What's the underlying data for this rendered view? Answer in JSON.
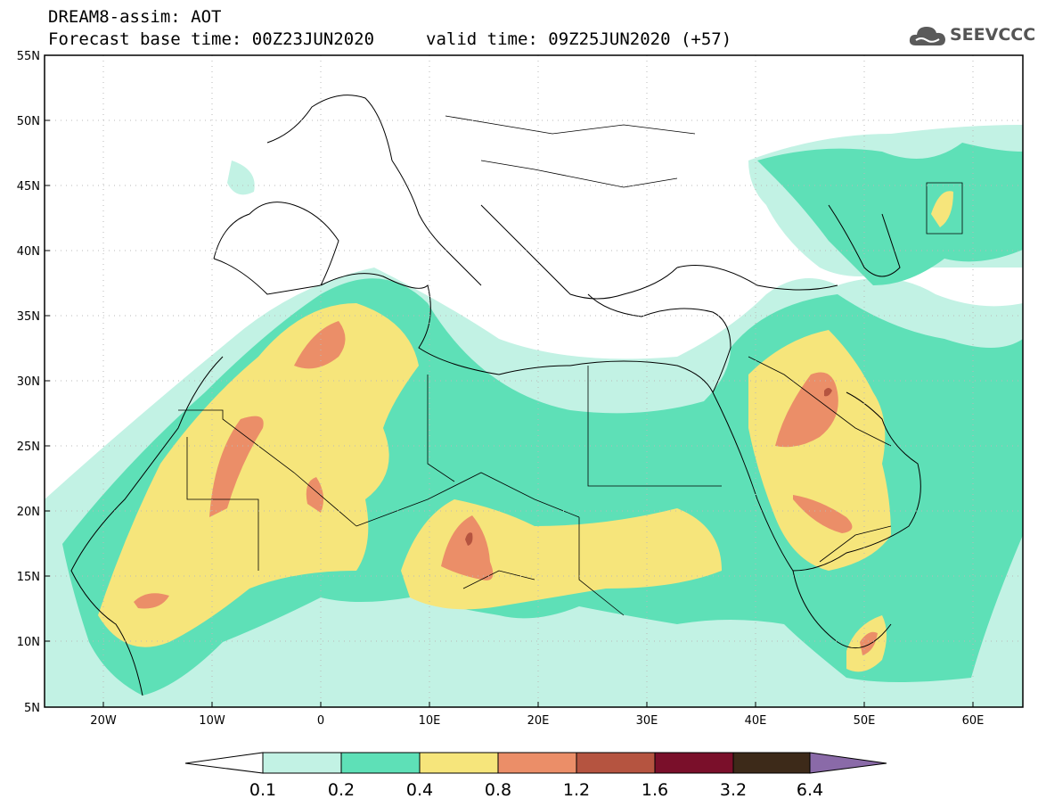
{
  "title": {
    "line1": "DREAM8-assim: AOT",
    "line2_base": "Forecast base time: 00Z23JUN2020",
    "line2_valid": "valid time: 09Z25JUN2020 (+57)"
  },
  "logo": {
    "text": "SEEVCCC",
    "icon": "cloud-icon"
  },
  "map": {
    "lat_labels": [
      "55N",
      "50N",
      "45N",
      "40N",
      "35N",
      "30N",
      "25N",
      "20N",
      "15N",
      "10N",
      "5N"
    ],
    "lon_labels": [
      "20W",
      "10W",
      "0",
      "10E",
      "20E",
      "30E",
      "40E",
      "50E",
      "60E"
    ],
    "lat_range": [
      5,
      55
    ],
    "lon_range": [
      -25,
      65
    ],
    "grid": true
  },
  "colorbar": {
    "thresholds": [
      "0.1",
      "0.2",
      "0.4",
      "0.8",
      "1.2",
      "1.6",
      "3.2",
      "6.4"
    ],
    "colors": [
      "#ffffff",
      "#c2f2e4",
      "#5ee0b7",
      "#f6e57b",
      "#eb8e68",
      "#b55440",
      "#7a0f2a",
      "#3d2a19",
      "#8a6aa8"
    ]
  }
}
